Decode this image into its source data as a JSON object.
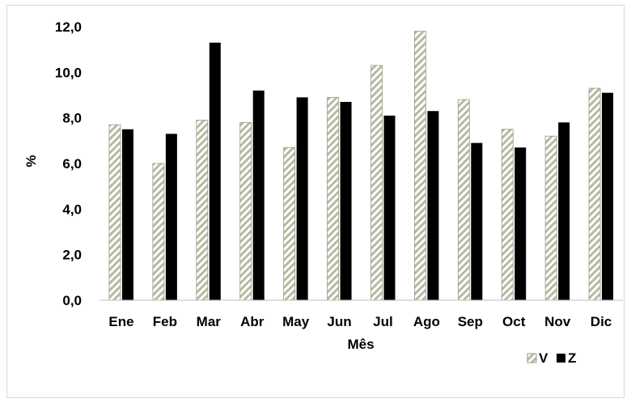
{
  "chart_data": {
    "type": "bar",
    "categories": [
      "Ene",
      "Feb",
      "Mar",
      "Abr",
      "May",
      "Jun",
      "Jul",
      "Ago",
      "Sep",
      "Oct",
      "Nov",
      "Dic"
    ],
    "series": [
      {
        "name": "V",
        "values": [
          7.7,
          6.0,
          7.9,
          7.8,
          6.7,
          8.9,
          10.3,
          11.8,
          8.8,
          7.5,
          7.2,
          9.3
        ],
        "pattern": "diagonal-hatch",
        "color": "#c8c8b4"
      },
      {
        "name": "Z",
        "values": [
          7.5,
          7.3,
          11.3,
          9.2,
          8.9,
          8.7,
          8.1,
          8.3,
          6.9,
          6.7,
          7.8,
          9.1
        ],
        "color": "#000000"
      }
    ],
    "xlabel": "Mês",
    "ylabel": "%",
    "ylim": [
      0,
      12
    ],
    "yticks": [
      "0,0",
      "2,0",
      "4,0",
      "6,0",
      "8,0",
      "10,0",
      "12,0"
    ],
    "grid": false,
    "legend_position": "bottom-right"
  }
}
